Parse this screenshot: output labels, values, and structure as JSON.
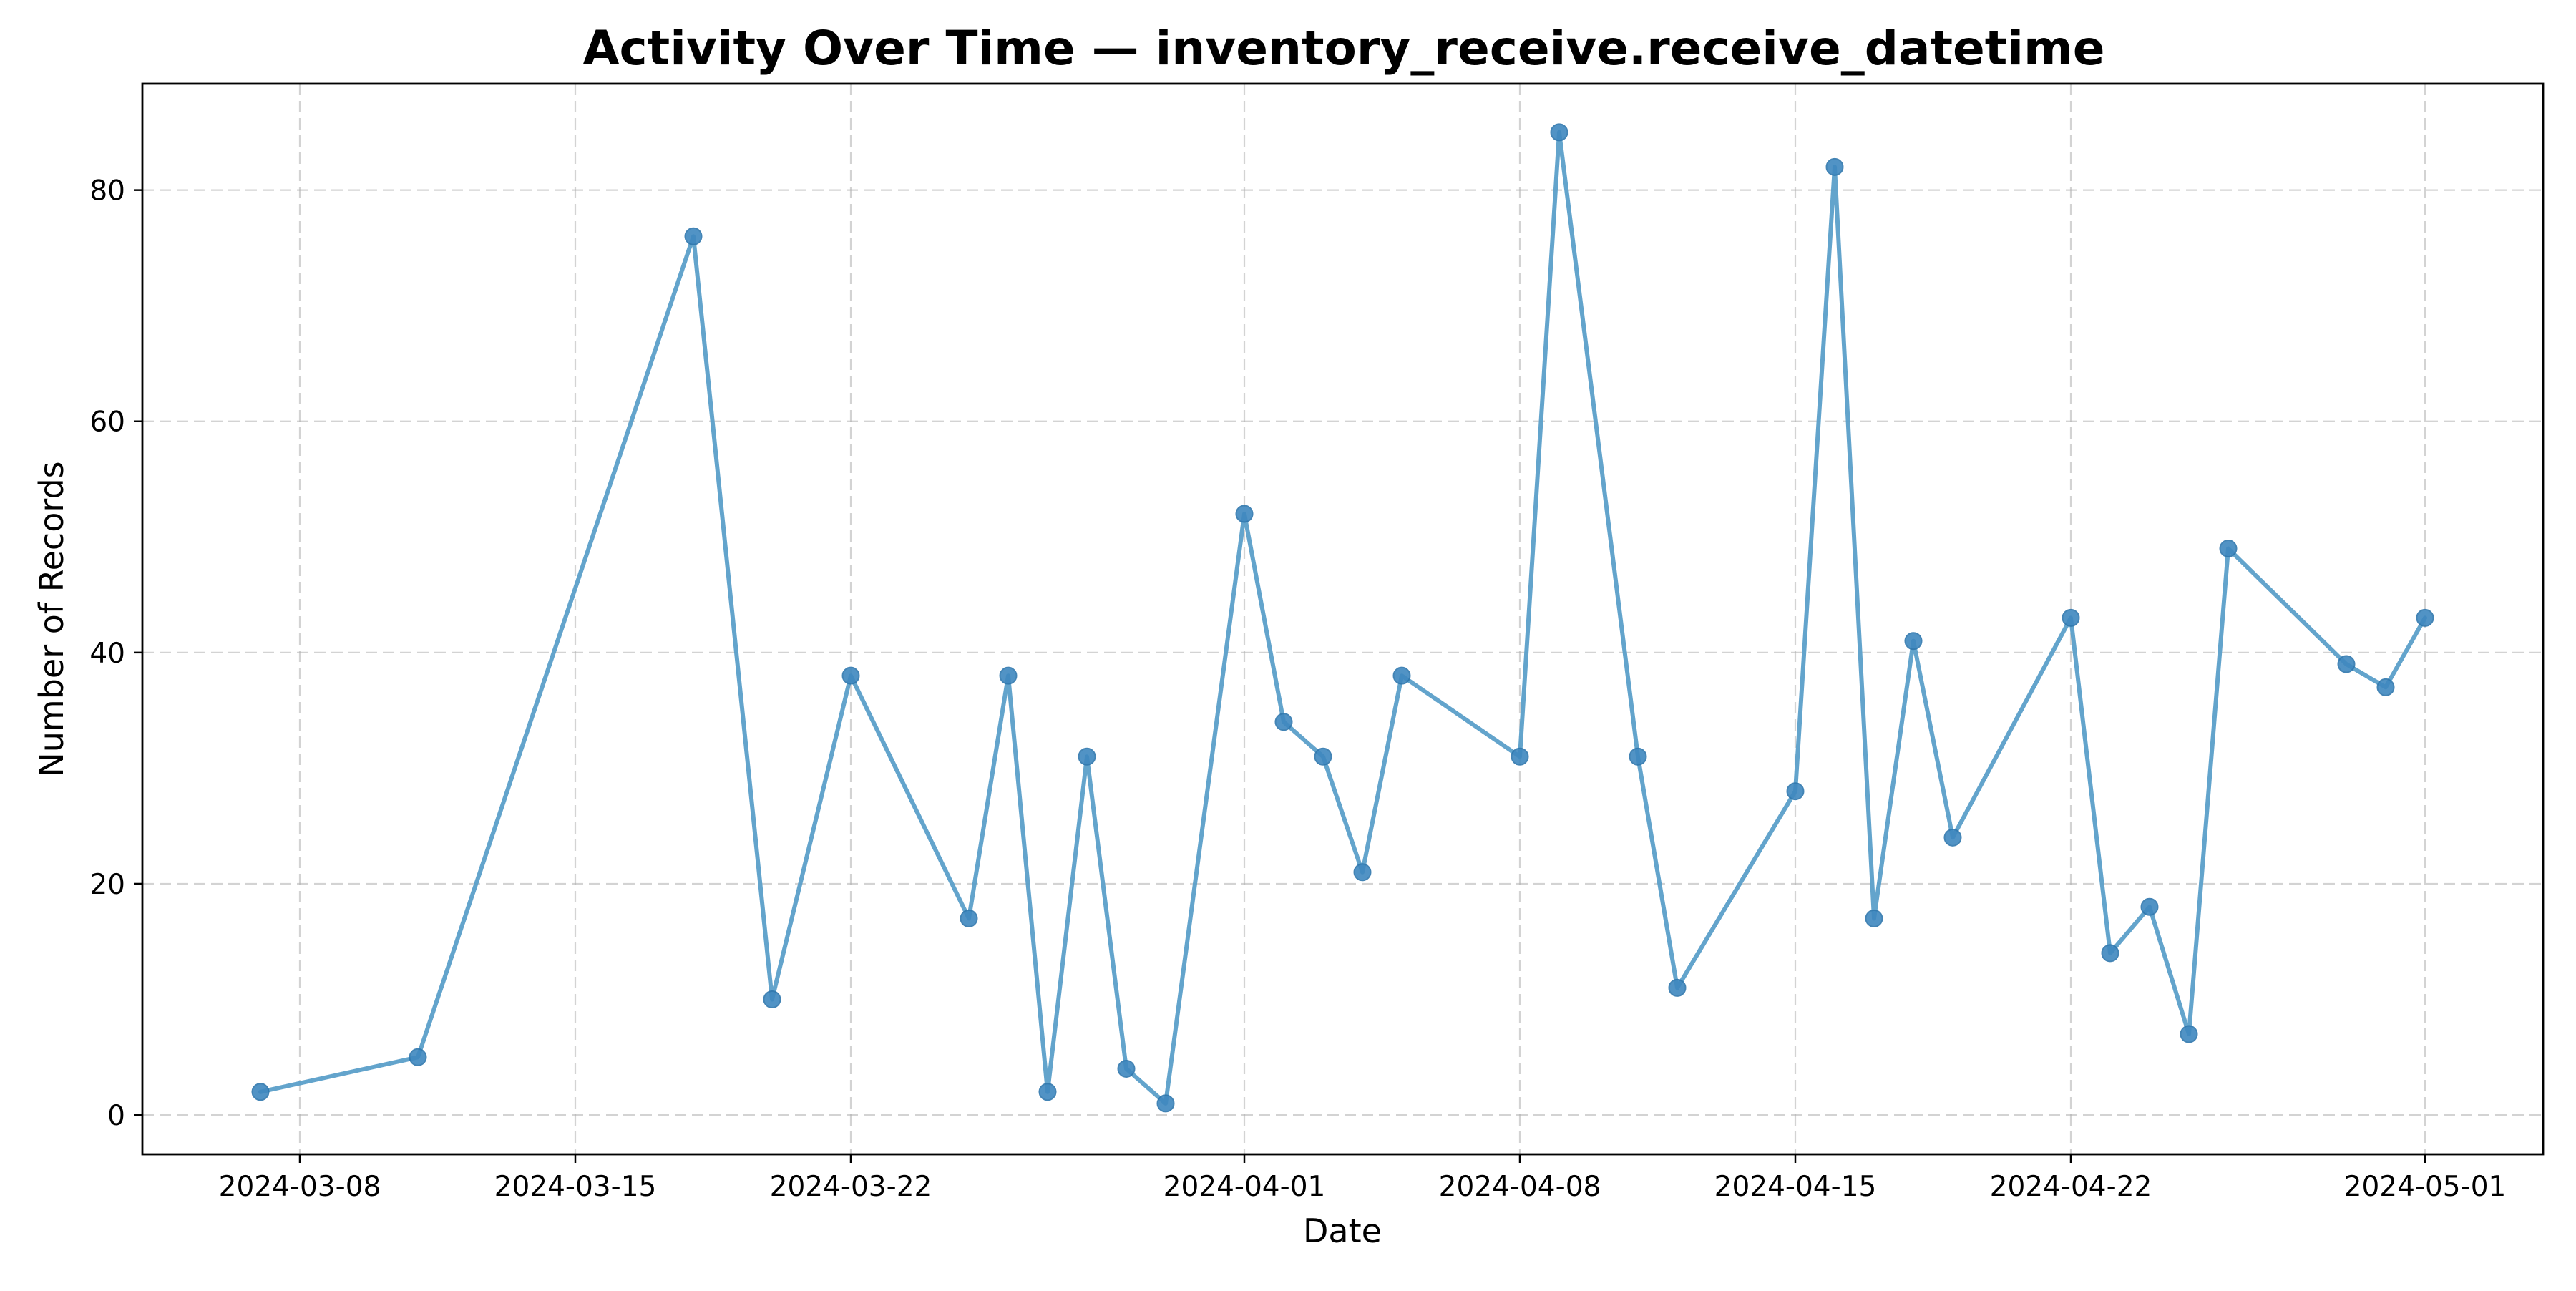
{
  "chart_data": {
    "type": "line",
    "title": "Activity Over Time — inventory_receive.receive_datetime",
    "xlabel": "Date",
    "ylabel": "Number of Records",
    "x_type": "date",
    "xlim": [
      "2024-03-04",
      "2024-05-04"
    ],
    "ylim": [
      -3.4,
      89.2
    ],
    "grid": true,
    "line_color": "#5b9fc9",
    "marker_color": "#3f88bf",
    "x_ticks": [
      "2024-03-08",
      "2024-03-15",
      "2024-03-22",
      "2024-04-01",
      "2024-04-08",
      "2024-04-15",
      "2024-04-22",
      "2024-05-01"
    ],
    "y_ticks": [
      0,
      20,
      40,
      60,
      80
    ],
    "series": [
      {
        "points": [
          {
            "x": "2024-03-07",
            "y": 2
          },
          {
            "x": "2024-03-11",
            "y": 5
          },
          {
            "x": "2024-03-18",
            "y": 76
          },
          {
            "x": "2024-03-20",
            "y": 10
          },
          {
            "x": "2024-03-22",
            "y": 38
          },
          {
            "x": "2024-03-25",
            "y": 17
          },
          {
            "x": "2024-03-26",
            "y": 38
          },
          {
            "x": "2024-03-27",
            "y": 2
          },
          {
            "x": "2024-03-28",
            "y": 31
          },
          {
            "x": "2024-03-29",
            "y": 4
          },
          {
            "x": "2024-03-30",
            "y": 1
          },
          {
            "x": "2024-04-01",
            "y": 52
          },
          {
            "x": "2024-04-02",
            "y": 34
          },
          {
            "x": "2024-04-03",
            "y": 31
          },
          {
            "x": "2024-04-04",
            "y": 21
          },
          {
            "x": "2024-04-05",
            "y": 38
          },
          {
            "x": "2024-04-08",
            "y": 31
          },
          {
            "x": "2024-04-09",
            "y": 85
          },
          {
            "x": "2024-04-11",
            "y": 31
          },
          {
            "x": "2024-04-12",
            "y": 11
          },
          {
            "x": "2024-04-15",
            "y": 28
          },
          {
            "x": "2024-04-16",
            "y": 82
          },
          {
            "x": "2024-04-17",
            "y": 17
          },
          {
            "x": "2024-04-18",
            "y": 41
          },
          {
            "x": "2024-04-19",
            "y": 24
          },
          {
            "x": "2024-04-22",
            "y": 43
          },
          {
            "x": "2024-04-23",
            "y": 14
          },
          {
            "x": "2024-04-24",
            "y": 18
          },
          {
            "x": "2024-04-25",
            "y": 7
          },
          {
            "x": "2024-04-26",
            "y": 49
          },
          {
            "x": "2024-04-29",
            "y": 39
          },
          {
            "x": "2024-04-30",
            "y": 37
          },
          {
            "x": "2024-05-01",
            "y": 43
          }
        ]
      }
    ]
  }
}
